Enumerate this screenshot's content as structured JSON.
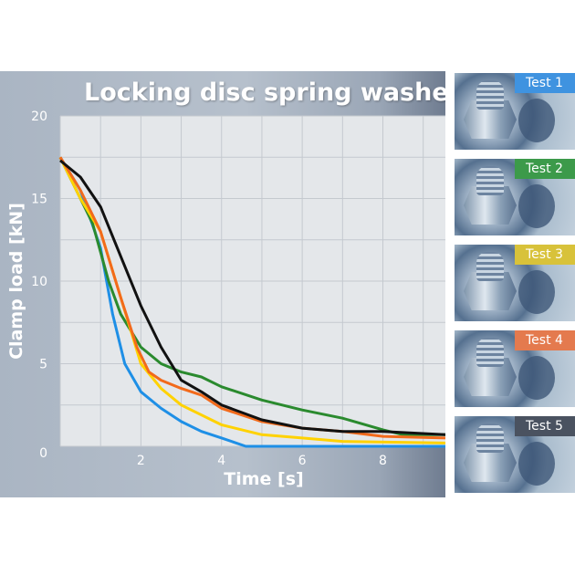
{
  "chart_data": {
    "type": "line",
    "title": "Locking disc spring washer",
    "xlabel": "Time [s]",
    "ylabel": "Clamp load [kN]",
    "xlim": [
      0,
      9.55
    ],
    "ylim": [
      0,
      20
    ],
    "xticks": [
      "2",
      "4",
      "6",
      "8"
    ],
    "xtick_values": [
      2,
      4,
      6,
      8
    ],
    "yticks": [
      "0",
      "5",
      "10",
      "15",
      "20"
    ],
    "ytick_values": [
      0,
      5,
      10,
      15,
      20
    ],
    "grid": true,
    "series": [
      {
        "name": "Test 1",
        "color": "#1e8fe6",
        "x": [
          0,
          0.5,
          1,
          1.3,
          1.6,
          2,
          2.5,
          3,
          3.5,
          4,
          4.6,
          9.55
        ],
        "y": [
          17.5,
          15.5,
          12,
          8,
          5,
          3.3,
          2.3,
          1.5,
          0.9,
          0.5,
          0,
          0
        ]
      },
      {
        "name": "Test 2",
        "color": "#2a8a2e",
        "x": [
          0,
          0.5,
          0.8,
          1.2,
          1.5,
          2,
          2.5,
          3,
          3.5,
          4,
          5,
          6,
          7,
          8,
          8.5,
          9.55
        ],
        "y": [
          17.5,
          15,
          13.5,
          10,
          8,
          6,
          5,
          4.5,
          4.2,
          3.6,
          2.8,
          2.2,
          1.7,
          1,
          0.7,
          0.7
        ]
      },
      {
        "name": "Test 3",
        "color": "#ffd200",
        "x": [
          0,
          0.5,
          1,
          1.5,
          2,
          2.5,
          3,
          4,
          5,
          6,
          7,
          9.55
        ],
        "y": [
          17.5,
          15,
          13,
          9,
          5,
          3.5,
          2.5,
          1.3,
          0.7,
          0.5,
          0.3,
          0.2
        ]
      },
      {
        "name": "Test 4",
        "color": "#f26a1b",
        "x": [
          0,
          0.5,
          1,
          1.5,
          1.9,
          2.2,
          2.5,
          3,
          3.5,
          4,
          5,
          6,
          7,
          8,
          9.55
        ],
        "y": [
          17.5,
          15.5,
          13,
          9,
          6,
          4.5,
          4,
          3.5,
          3.1,
          2.3,
          1.5,
          1.1,
          0.9,
          0.6,
          0.5
        ]
      },
      {
        "name": "Test 5",
        "color": "#111111",
        "x": [
          0,
          0.5,
          1,
          1.5,
          2,
          2.5,
          3,
          3.5,
          4,
          5,
          6,
          7,
          8,
          9.55
        ],
        "y": [
          17.3,
          16.3,
          14.5,
          11.5,
          8.5,
          6,
          4,
          3.3,
          2.5,
          1.6,
          1.1,
          0.9,
          0.9,
          0.7
        ]
      }
    ]
  },
  "photos": [
    {
      "label": "Test 1",
      "color": "#3f93e0"
    },
    {
      "label": "Test 2",
      "color": "#3c9a4a"
    },
    {
      "label": "Test 3",
      "color": "#d8c23a"
    },
    {
      "label": "Test 4",
      "color": "#e47a4e"
    },
    {
      "label": "Test 5",
      "color": "#4a5260"
    }
  ]
}
